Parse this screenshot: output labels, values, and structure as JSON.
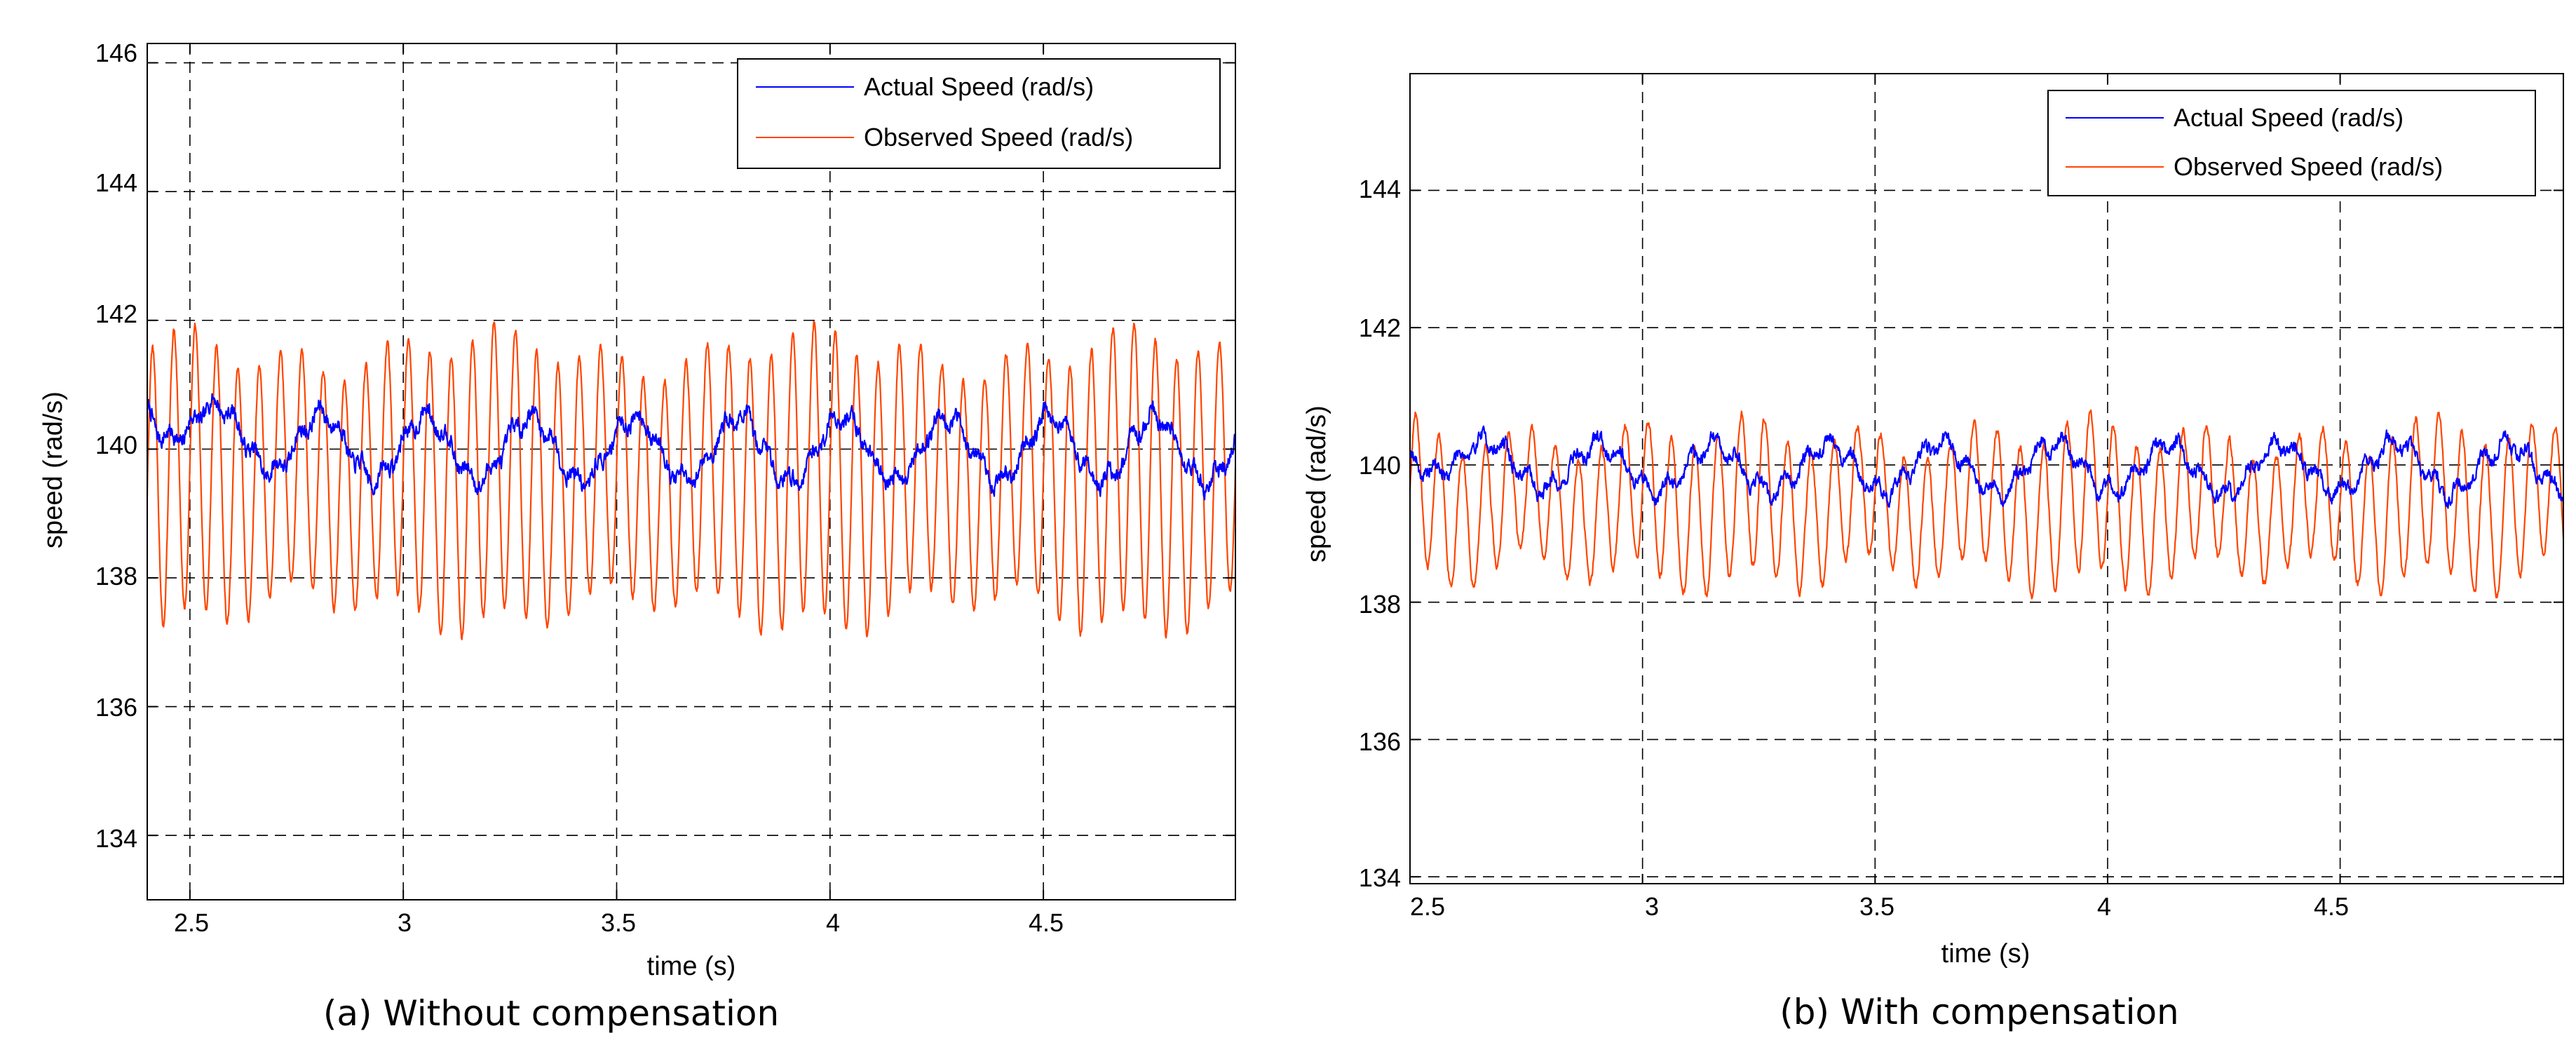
{
  "chart_data": [
    {
      "type": "line",
      "caption": "(a) Without compensation",
      "xlabel": "time (s)",
      "ylabel": "speed (rad/s)",
      "xlim": [
        2.4,
        4.95
      ],
      "ylim": [
        133,
        146.3
      ],
      "xticks": [
        2.5,
        3,
        3.5,
        4,
        4.5
      ],
      "xtick_labels": [
        "2.5",
        "3",
        "3.5",
        "4",
        "4.5"
      ],
      "yticks": [
        134,
        136,
        138,
        140,
        142,
        144,
        146
      ],
      "ytick_labels": [
        "134",
        "136",
        "138",
        "140",
        "142",
        "144",
        "146"
      ],
      "grid": true,
      "legend_position": "top-right",
      "series": [
        {
          "name": "Actual Speed (rad/s)",
          "color": "#0000ff",
          "mean": 140.0,
          "amplitude": 0.5,
          "frequency_hz": 4.1,
          "noise": 0.1,
          "start": 140.7
        },
        {
          "name": "Observed Speed (rad/s)",
          "color": "#ff4500",
          "mean": 139.5,
          "amplitude": 2.0,
          "frequency_hz": 20,
          "noise": 0.05,
          "min": 137.0,
          "max": 141.7
        }
      ]
    },
    {
      "type": "line",
      "caption": "(b) With compensation",
      "xlabel": "time (s)",
      "ylabel": "speed (rad/s)",
      "xlim": [
        2.5,
        4.98
      ],
      "ylim": [
        133.9,
        145.7
      ],
      "xticks": [
        2.5,
        3,
        3.5,
        4,
        4.5
      ],
      "xtick_labels": [
        "2.5",
        "3",
        "3.5",
        "4",
        "4.5"
      ],
      "yticks": [
        134,
        136,
        138,
        140,
        142,
        144
      ],
      "ytick_labels": [
        "134",
        "136",
        "138",
        "140",
        "142",
        "144"
      ],
      "grid": true,
      "legend_position": "top-right",
      "series": [
        {
          "name": "Actual Speed (rad/s)",
          "color": "#0000ff",
          "mean": 139.95,
          "amplitude": 0.35,
          "frequency_hz": 4.1,
          "noise": 0.08,
          "start": 140.2
        },
        {
          "name": "Observed Speed (rad/s)",
          "color": "#ff4500",
          "mean": 139.4,
          "amplitude": 1.0,
          "frequency_hz": 20,
          "noise": 0.05,
          "min": 137.9,
          "max": 140.6
        }
      ]
    }
  ]
}
